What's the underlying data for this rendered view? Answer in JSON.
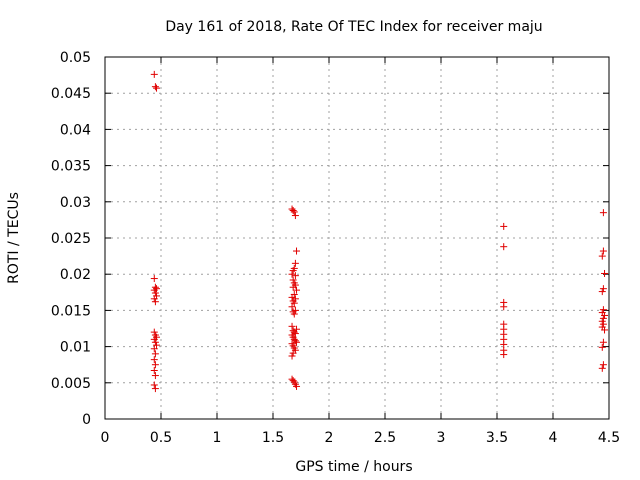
{
  "chart_data": {
    "type": "scatter",
    "title": "Day 161 of 2018, Rate Of TEC Index for receiver maju",
    "xlabel": "GPS time / hours",
    "ylabel": "ROTI / TECUs",
    "xlim": [
      0,
      4.5
    ],
    "ylim": [
      0,
      0.05
    ],
    "x_ticks": [
      0,
      0.5,
      1,
      1.5,
      2,
      2.5,
      3,
      3.5,
      4,
      4.5
    ],
    "x_tick_labels": [
      "0",
      "0.5",
      "1",
      "1.5",
      "2",
      "2.5",
      "3",
      "3.5",
      "4",
      "4.5"
    ],
    "y_ticks": [
      0,
      0.005,
      0.01,
      0.015,
      0.02,
      0.025,
      0.03,
      0.035,
      0.04,
      0.045,
      0.05
    ],
    "y_tick_labels": [
      "0",
      "0.005",
      "0.01",
      "0.015",
      "0.02",
      "0.025",
      "0.03",
      "0.035",
      "0.04",
      "0.045",
      "0.05"
    ],
    "grid": true,
    "marker": "+",
    "marker_color": "#e00000",
    "series": [
      {
        "name": "ROTI",
        "points": [
          [
            0.44,
            0.0476
          ],
          [
            0.45,
            0.0459
          ],
          [
            0.46,
            0.0457
          ],
          [
            0.44,
            0.0194
          ],
          [
            0.45,
            0.0182
          ],
          [
            0.46,
            0.018
          ],
          [
            0.44,
            0.0178
          ],
          [
            0.45,
            0.0174
          ],
          [
            0.46,
            0.017
          ],
          [
            0.44,
            0.0166
          ],
          [
            0.45,
            0.0162
          ],
          [
            0.44,
            0.012
          ],
          [
            0.45,
            0.0116
          ],
          [
            0.46,
            0.0113
          ],
          [
            0.44,
            0.011
          ],
          [
            0.45,
            0.0106
          ],
          [
            0.46,
            0.0102
          ],
          [
            0.44,
            0.0097
          ],
          [
            0.45,
            0.009
          ],
          [
            0.44,
            0.0082
          ],
          [
            0.45,
            0.0075
          ],
          [
            0.44,
            0.0067
          ],
          [
            0.45,
            0.006
          ],
          [
            0.44,
            0.0047
          ],
          [
            0.45,
            0.0042
          ],
          [
            1.67,
            0.029
          ],
          [
            1.68,
            0.0288
          ],
          [
            1.69,
            0.0286
          ],
          [
            1.7,
            0.0281
          ],
          [
            1.71,
            0.0232
          ],
          [
            1.7,
            0.0215
          ],
          [
            1.69,
            0.0208
          ],
          [
            1.68,
            0.0205
          ],
          [
            1.67,
            0.02
          ],
          [
            1.7,
            0.0198
          ],
          [
            1.68,
            0.0192
          ],
          [
            1.69,
            0.0188
          ],
          [
            1.7,
            0.0185
          ],
          [
            1.68,
            0.0182
          ],
          [
            1.71,
            0.0178
          ],
          [
            1.69,
            0.0172
          ],
          [
            1.67,
            0.0168
          ],
          [
            1.7,
            0.0166
          ],
          [
            1.68,
            0.0163
          ],
          [
            1.69,
            0.016
          ],
          [
            1.67,
            0.0155
          ],
          [
            1.7,
            0.015
          ],
          [
            1.68,
            0.0148
          ],
          [
            1.69,
            0.0145
          ],
          [
            1.67,
            0.0128
          ],
          [
            1.71,
            0.0124
          ],
          [
            1.68,
            0.0122
          ],
          [
            1.69,
            0.012
          ],
          [
            1.7,
            0.0118
          ],
          [
            1.67,
            0.0116
          ],
          [
            1.68,
            0.0113
          ],
          [
            1.69,
            0.011
          ],
          [
            1.7,
            0.0108
          ],
          [
            1.71,
            0.0106
          ],
          [
            1.67,
            0.0104
          ],
          [
            1.68,
            0.0101
          ],
          [
            1.69,
            0.0098
          ],
          [
            1.7,
            0.0095
          ],
          [
            1.68,
            0.0091
          ],
          [
            1.67,
            0.0087
          ],
          [
            1.67,
            0.0055
          ],
          [
            1.68,
            0.0053
          ],
          [
            1.69,
            0.0051
          ],
          [
            1.7,
            0.0048
          ],
          [
            1.71,
            0.0045
          ],
          [
            3.56,
            0.0266
          ],
          [
            3.56,
            0.0238
          ],
          [
            3.56,
            0.0161
          ],
          [
            3.56,
            0.0155
          ],
          [
            3.56,
            0.0131
          ],
          [
            3.56,
            0.0124
          ],
          [
            3.56,
            0.0117
          ],
          [
            3.56,
            0.011
          ],
          [
            3.56,
            0.0103
          ],
          [
            3.56,
            0.0095
          ],
          [
            3.56,
            0.0089
          ],
          [
            4.45,
            0.0285
          ],
          [
            4.45,
            0.0232
          ],
          [
            4.44,
            0.0225
          ],
          [
            4.46,
            0.0201
          ],
          [
            4.45,
            0.018
          ],
          [
            4.44,
            0.0176
          ],
          [
            4.45,
            0.0151
          ],
          [
            4.44,
            0.0147
          ],
          [
            4.46,
            0.0143
          ],
          [
            4.45,
            0.0139
          ],
          [
            4.44,
            0.0135
          ],
          [
            4.45,
            0.0131
          ],
          [
            4.44,
            0.0127
          ],
          [
            4.46,
            0.0123
          ],
          [
            4.45,
            0.0106
          ],
          [
            4.44,
            0.0099
          ],
          [
            4.45,
            0.0075
          ],
          [
            4.44,
            0.007
          ]
        ]
      }
    ]
  }
}
